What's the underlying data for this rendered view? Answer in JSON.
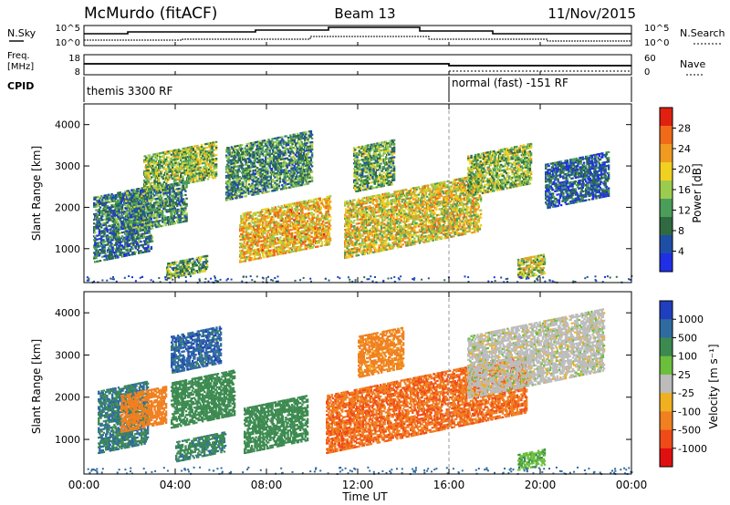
{
  "header": {
    "station": "McMurdo (fitACF)",
    "beam": "Beam 13",
    "date": "11/Nov/2015"
  },
  "top_panels": {
    "left_labels": [
      "N.Sky",
      "Freq.",
      "[MHz]",
      "CPID"
    ],
    "right_labels": [
      "N.Search",
      "Nave"
    ],
    "noise_ticks": [
      "10^5",
      "10^0"
    ],
    "freq_ticks": [
      "18",
      "8"
    ],
    "nave_ticks": [
      "60",
      "0"
    ],
    "cpid_segments": [
      {
        "start_h": 0,
        "end_h": 16,
        "label": "themis 3300 RF"
      },
      {
        "start_h": 16,
        "end_h": 24,
        "label": "normal (fast) -151 RF"
      }
    ]
  },
  "x_axis": {
    "label": "Time UT",
    "ticks": [
      "00:00",
      "04:00",
      "08:00",
      "12:00",
      "16:00",
      "20:00",
      "00:00"
    ]
  },
  "chart_data": [
    {
      "type": "heatmap",
      "ylabel": "Slant Range [km]",
      "yticks": [
        1000,
        2000,
        3000,
        4000
      ],
      "ylim": [
        180,
        4500
      ],
      "xlim_hours": [
        0,
        24
      ],
      "colorbar": {
        "label": "Power [dB]",
        "ticks": [
          "4",
          "8",
          "12",
          "16",
          "20",
          "24",
          "28"
        ],
        "colors": [
          "#1f2fe6",
          "#1e4fa6",
          "#2f6a40",
          "#4a9e5a",
          "#9ccc4e",
          "#f0d020",
          "#f09a20",
          "#f06a18",
          "#e02010"
        ]
      },
      "regions": [
        {
          "h0": 0.4,
          "h1": 3.0,
          "r0": 700,
          "r1": 2300,
          "level": 10
        },
        {
          "h0": 2.6,
          "h1": 5.8,
          "r0": 2400,
          "r1": 3300,
          "level": 16
        },
        {
          "h0": 1.8,
          "h1": 4.5,
          "r0": 1400,
          "r1": 2400,
          "level": 12
        },
        {
          "h0": 3.6,
          "h1": 5.4,
          "r0": 300,
          "r1": 700,
          "level": 14
        },
        {
          "h0": 6.8,
          "h1": 10.8,
          "r0": 700,
          "r1": 1900,
          "level": 22
        },
        {
          "h0": 6.2,
          "h1": 10.0,
          "r0": 2200,
          "r1": 3500,
          "level": 12
        },
        {
          "h0": 11.4,
          "h1": 17.4,
          "r0": 800,
          "r1": 2200,
          "level": 20
        },
        {
          "h0": 11.8,
          "h1": 13.6,
          "r0": 2400,
          "r1": 3500,
          "level": 14
        },
        {
          "h0": 16.8,
          "h1": 19.6,
          "r0": 2300,
          "r1": 3300,
          "level": 16
        },
        {
          "h0": 19.0,
          "h1": 20.2,
          "r0": 300,
          "r1": 800,
          "level": 18
        },
        {
          "h0": 20.2,
          "h1": 23.0,
          "r0": 2000,
          "r1": 3100,
          "level": 8
        }
      ]
    },
    {
      "type": "heatmap",
      "ylabel": "Slant Range [km]",
      "yticks": [
        1000,
        2000,
        3000,
        4000
      ],
      "ylim": [
        180,
        4500
      ],
      "xlim_hours": [
        0,
        24
      ],
      "colorbar": {
        "label": "Velocity [m s⁻¹]",
        "ticks": [
          "1000",
          "500",
          "100",
          "25",
          "-25",
          "-100",
          "-500",
          "-1000"
        ],
        "colors": [
          "#1f3fbf",
          "#2f6aa0",
          "#3c8a50",
          "#6bbf3c",
          "#bcbcbc",
          "#f0b020",
          "#f08020",
          "#f04a18",
          "#e01010"
        ]
      },
      "regions": [
        {
          "h0": 0.6,
          "h1": 2.8,
          "r0": 700,
          "r1": 2200,
          "level": 500
        },
        {
          "h0": 1.6,
          "h1": 3.6,
          "r0": 1200,
          "r1": 2100,
          "level": -200
        },
        {
          "h0": 3.8,
          "h1": 6.0,
          "r0": 2600,
          "r1": 3500,
          "level": 800
        },
        {
          "h0": 3.8,
          "h1": 6.6,
          "r0": 1300,
          "r1": 2400,
          "level": 300
        },
        {
          "h0": 4.0,
          "h1": 6.2,
          "r0": 500,
          "r1": 1000,
          "level": 400
        },
        {
          "h0": 7.0,
          "h1": 9.8,
          "r0": 700,
          "r1": 1800,
          "level": 300
        },
        {
          "h0": 10.6,
          "h1": 19.4,
          "r0": 700,
          "r1": 2100,
          "level": -450
        },
        {
          "h0": 12.0,
          "h1": 14.0,
          "r0": 2500,
          "r1": 3500,
          "level": -150
        },
        {
          "h0": 16.8,
          "h1": 22.8,
          "r0": 2000,
          "r1": 3500,
          "level": 0
        },
        {
          "h0": 19.0,
          "h1": 20.2,
          "r0": 300,
          "r1": 700,
          "level": 80
        }
      ]
    }
  ]
}
